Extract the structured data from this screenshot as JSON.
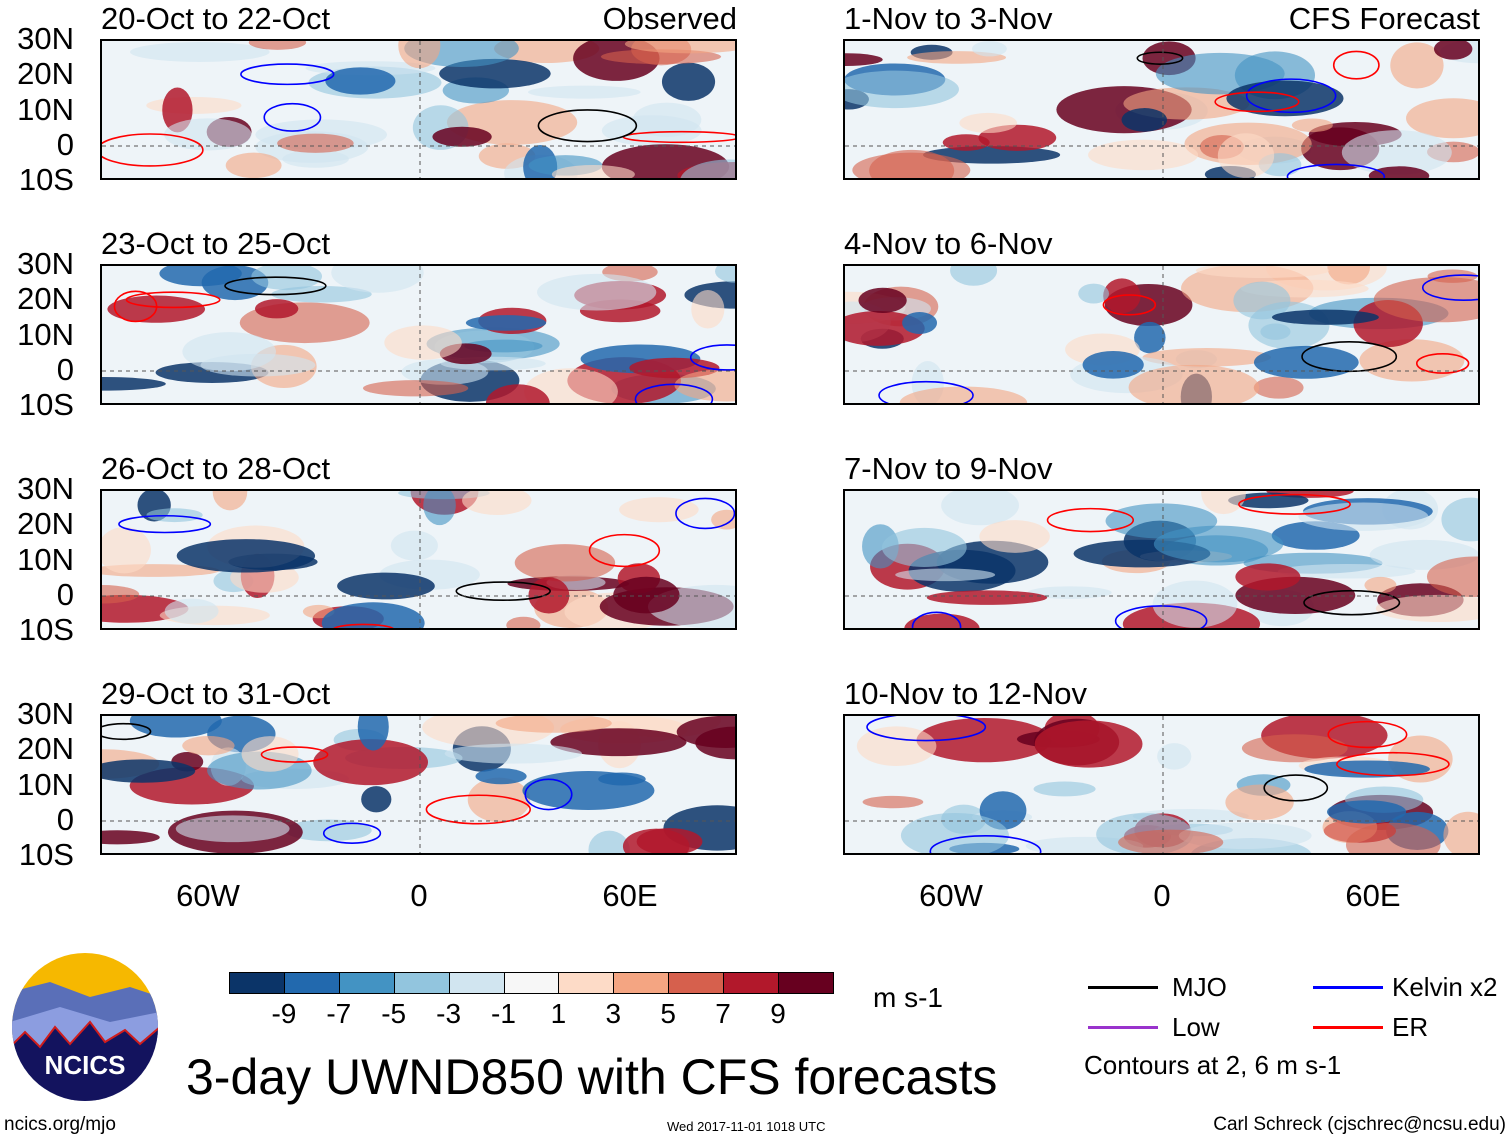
{
  "panels": [
    {
      "title": "20-Oct to 22-Oct",
      "label": "Observed",
      "column": "left"
    },
    {
      "title": "1-Nov to 3-Nov",
      "label": "CFS Forecast",
      "column": "right"
    },
    {
      "title": "23-Oct to 25-Oct",
      "label": "",
      "column": "left"
    },
    {
      "title": "4-Nov to 6-Nov",
      "label": "",
      "column": "right"
    },
    {
      "title": "26-Oct to 28-Oct",
      "label": "",
      "column": "left"
    },
    {
      "title": "7-Nov to 9-Nov",
      "label": "",
      "column": "right"
    },
    {
      "title": "29-Oct to 31-Oct",
      "label": "",
      "column": "left"
    },
    {
      "title": "10-Nov to 12-Nov",
      "label": "",
      "column": "right"
    }
  ],
  "lat_labels": [
    "30N",
    "20N",
    "10N",
    "0",
    "10S"
  ],
  "lon_labels": [
    "60W",
    "0",
    "60E"
  ],
  "colorbar": {
    "colors": [
      "#0b3468",
      "#2269ae",
      "#4393c3",
      "#92c5de",
      "#d1e5f0",
      "#f7f7f7",
      "#fddbc7",
      "#f4a582",
      "#d6604d",
      "#b2182b",
      "#67001f"
    ],
    "labels": [
      "-9",
      "-7",
      "-5",
      "-3",
      "-1",
      "1",
      "3",
      "5",
      "7",
      "9"
    ],
    "units": "m s-1"
  },
  "legend": {
    "items": [
      {
        "label": "MJO",
        "color": "#000000"
      },
      {
        "label": "Kelvin x2",
        "color": "#0000ff"
      },
      {
        "label": "Low",
        "color": "#9933cc"
      },
      {
        "label": "ER",
        "color": "#ff0000"
      }
    ],
    "note": "Contours at 2, 6 m s-1"
  },
  "logo_text": "NCICS",
  "title": "3-day UWND850 with CFS forecasts",
  "footer": {
    "url": "ncics.org/mjo",
    "timestamp": "Wed 2017-11-01 1018 UTC",
    "author": "Carl Schreck (cjschrec@ncsu.edu)"
  }
}
